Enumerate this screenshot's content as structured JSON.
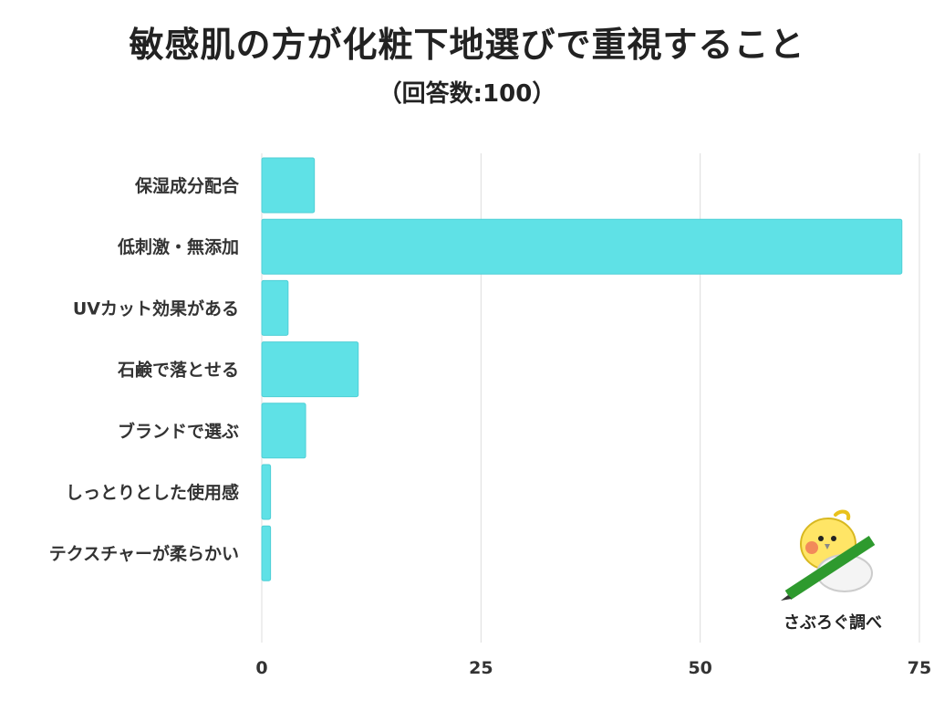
{
  "header": {
    "title": "敏感肌の方が化粧下地選びで重視すること",
    "subtitle": "（回答数:100）"
  },
  "credit": "さぶろぐ調べ",
  "colors": {
    "bar": "#5fe1e6",
    "bar_stroke": "#4fcfd6",
    "grid": "#dcdcdc",
    "mascot_body": "#ffe566",
    "pencil": "#2e9a2e"
  },
  "chart_data": {
    "type": "bar",
    "orientation": "horizontal",
    "categories": [
      "保湿成分配合",
      "低刺激・無添加",
      "UVカット効果がある",
      "石鹸で落とせる",
      "ブランドで選ぶ",
      "しっとりとした使用感",
      "テクスチャーが柔らかい"
    ],
    "values": [
      6,
      73,
      3,
      11,
      5,
      1,
      1
    ],
    "xlim": [
      0,
      75
    ],
    "xticks": [
      0,
      25,
      50,
      75
    ],
    "grid": true,
    "title": "敏感肌の方が化粧下地選びで重視すること",
    "subtitle": "（回答数:100）",
    "xlabel": "",
    "ylabel": ""
  }
}
